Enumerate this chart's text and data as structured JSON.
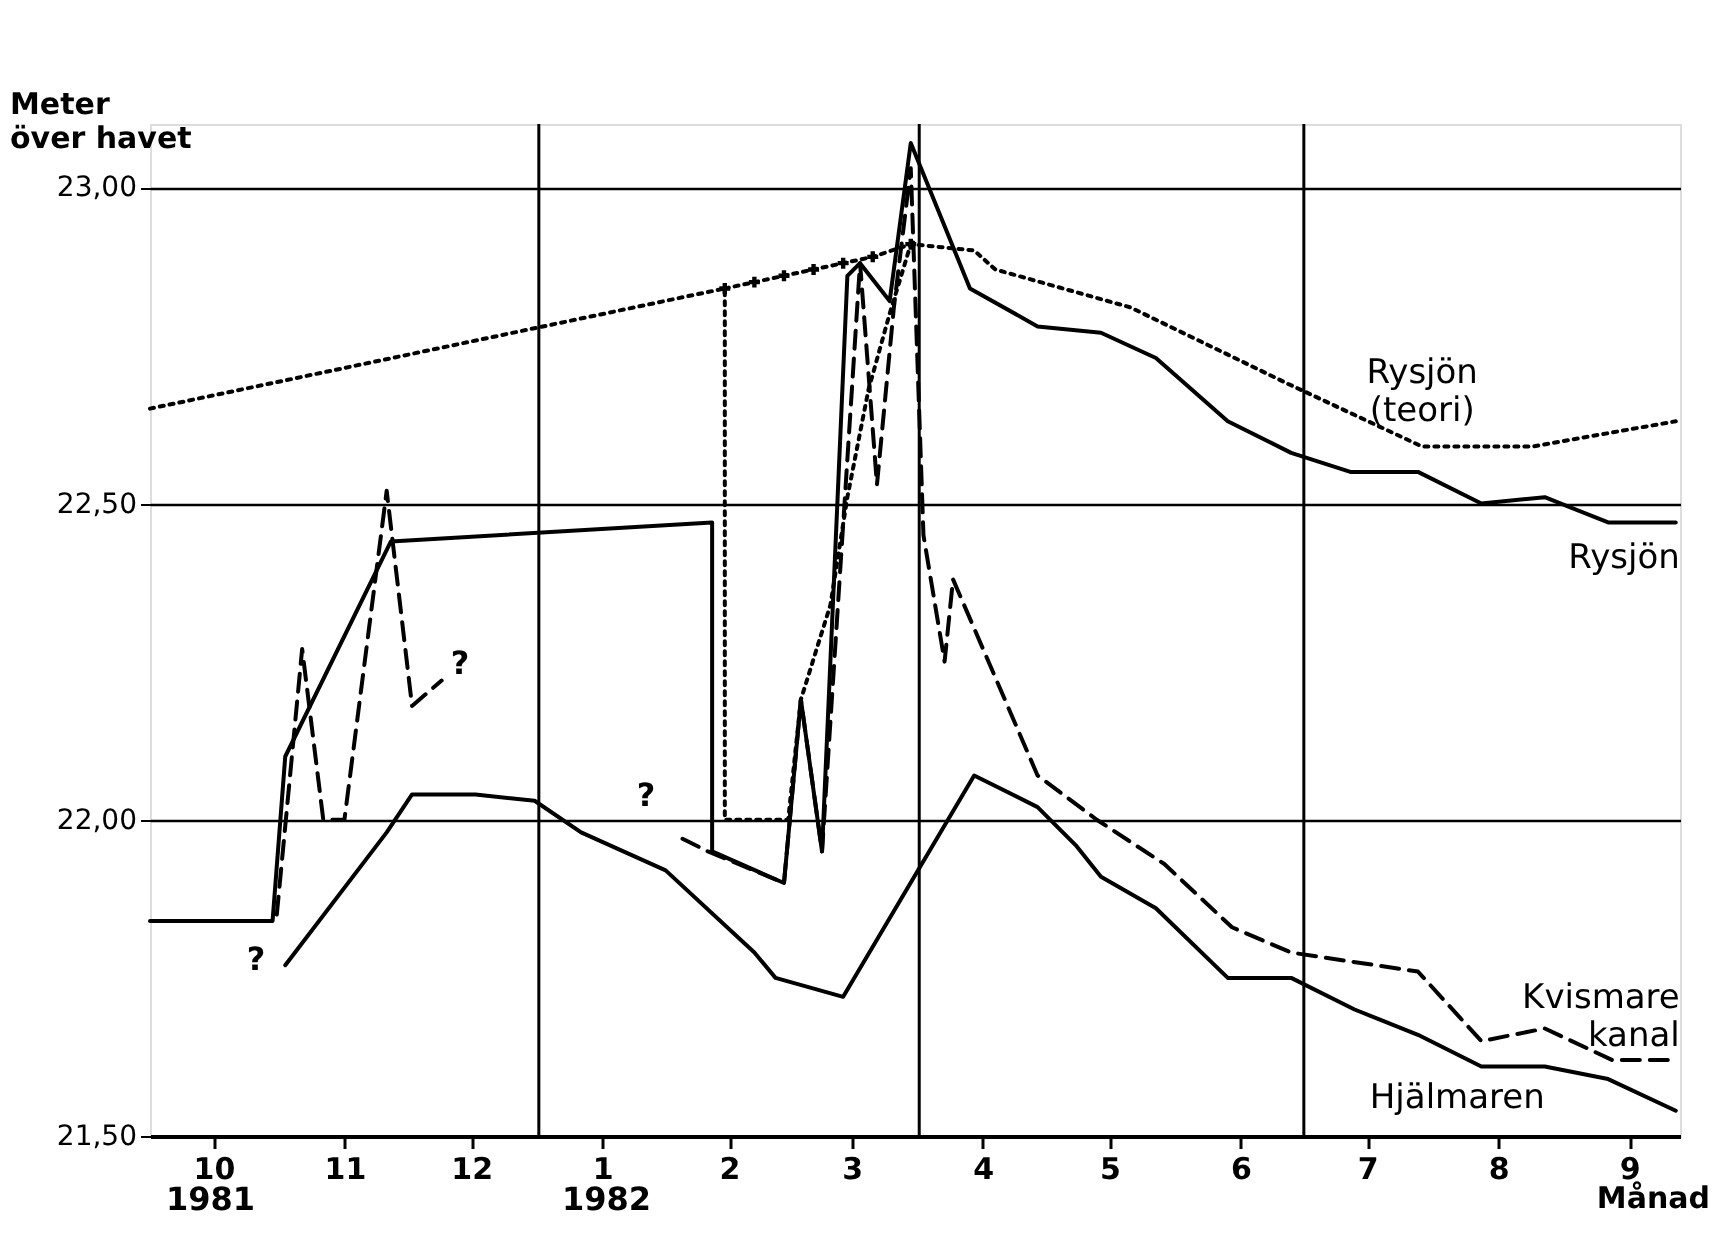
{
  "chart_data": {
    "type": "line",
    "ylabel": "Meter\növer havet",
    "xlabel": "Månad",
    "xlim": [
      "1981-10-01",
      "1982-09-28"
    ],
    "ylim": [
      21.5,
      23.1
    ],
    "xticks": [
      {
        "value": "1981-10-16",
        "label": "10"
      },
      {
        "value": "1981-11-16",
        "label": "11"
      },
      {
        "value": "1981-12-16",
        "label": "12"
      },
      {
        "value": "1982-01-16",
        "label": "1"
      },
      {
        "value": "1982-02-15",
        "label": "2"
      },
      {
        "value": "1982-03-16",
        "label": "3"
      },
      {
        "value": "1982-04-16",
        "label": "4"
      },
      {
        "value": "1982-05-16",
        "label": "5"
      },
      {
        "value": "1982-06-16",
        "label": "6"
      },
      {
        "value": "1982-07-16",
        "label": "7"
      },
      {
        "value": "1982-08-16",
        "label": "8"
      },
      {
        "value": "1982-09-16",
        "label": "9"
      }
    ],
    "yticks": [
      {
        "value": 21.5,
        "label": "21,50"
      },
      {
        "value": 22.0,
        "label": "22,00"
      },
      {
        "value": 22.5,
        "label": "22,50"
      },
      {
        "value": 23.0,
        "label": "23,00"
      }
    ],
    "grid": "y",
    "marker": "none",
    "ref_lines": [
      {
        "axis": "x",
        "value": "1982-01-01",
        "label": null
      },
      {
        "axis": "x",
        "value": "1982-04-01",
        "label": null
      },
      {
        "axis": "x",
        "value": "1982-07-01",
        "label": null
      }
    ],
    "annotations": [
      "?",
      "?",
      "?",
      "1981",
      "1982"
    ],
    "series": [
      {
        "name": "Rysjön (teori)",
        "color": "#000000",
        "line_style": "dotted",
        "x": [
          "1981-10-01",
          "1982-02-14",
          "1982-02-14",
          "1982-03-01",
          "1982-03-04",
          "1982-03-11",
          "1982-03-15",
          "1982-03-20",
          "1982-03-25",
          "1982-03-30",
          "1982-04-14",
          "1982-04-19",
          "1982-05-21",
          "1982-06-27",
          "1982-07-29",
          "1982-08-24",
          "1982-09-27"
        ],
        "values": [
          22.65,
          22.84,
          22.0,
          22.0,
          22.19,
          22.34,
          22.51,
          22.68,
          22.8,
          22.91,
          22.9,
          22.87,
          22.81,
          22.69,
          22.59,
          22.59,
          22.63
        ]
      },
      {
        "name": "Rysjön",
        "color": "#000000",
        "line_style": "solid",
        "x": [
          "1981-10-01",
          "1981-10-30",
          "1981-11-02",
          "1981-11-27",
          "1982-02-11",
          "1982-02-11",
          "1982-02-28",
          "1982-03-04",
          "1982-03-09",
          "1982-03-15",
          "1982-03-18",
          "1982-03-25",
          "1982-03-30",
          "1982-04-13",
          "1982-04-29",
          "1982-05-14",
          "1982-05-27",
          "1982-06-13",
          "1982-06-28",
          "1982-07-12",
          "1982-07-28",
          "1982-08-12",
          "1982-08-27",
          "1982-09-11",
          "1982-09-27"
        ],
        "values": [
          21.84,
          21.84,
          22.1,
          22.44,
          22.47,
          21.95,
          21.9,
          22.19,
          21.95,
          22.86,
          22.88,
          22.82,
          23.07,
          22.84,
          22.78,
          22.77,
          22.73,
          22.63,
          22.58,
          22.55,
          22.55,
          22.5,
          22.51,
          22.47,
          22.47
        ]
      },
      {
        "name": "Kvismare kanal",
        "color": "#000000",
        "line_style": "dashed",
        "x": [
          "1981-10-31",
          "1981-11-06",
          "1981-11-11",
          "1981-11-16",
          "1981-11-26",
          "1981-12-02",
          "1981-12-09",
          "1982-01-01",
          "1982-02-04",
          "1982-02-10",
          "1982-02-28",
          "1982-03-04",
          "1982-03-09",
          "1982-03-18",
          "1982-03-22",
          "1982-03-26",
          "1982-03-30",
          "1982-04-02",
          "1982-04-07",
          "1982-04-09",
          "1982-04-29",
          "1982-05-13",
          "1982-05-29",
          "1982-06-14",
          "1982-06-28",
          "1982-07-28",
          "1982-08-12",
          "1982-08-27",
          "1982-09-12",
          "1982-09-27"
        ],
        "values": [
          21.85,
          22.27,
          22.0,
          22.0,
          22.52,
          22.18,
          22.22,
          null,
          21.97,
          21.95,
          21.9,
          22.19,
          21.95,
          22.88,
          22.53,
          22.81,
          23.03,
          22.45,
          22.25,
          22.38,
          22.07,
          22.0,
          21.93,
          21.83,
          21.79,
          21.76,
          21.65,
          21.67,
          21.62,
          21.62
        ]
      },
      {
        "name": "Hjälmaren",
        "color": "#000000",
        "line_style": "solid",
        "x": [
          "1981-11-02",
          "1981-11-26",
          "1981-12-02",
          "1981-12-17",
          "1981-12-31",
          "1982-01-11",
          "1982-01-31",
          "1982-02-21",
          "1982-02-26",
          "1982-03-14",
          "1982-04-14",
          "1982-04-29",
          "1982-05-08",
          "1982-05-14",
          "1982-05-27",
          "1982-06-13",
          "1982-06-28",
          "1982-07-13",
          "1982-07-28",
          "1982-08-12",
          "1982-08-27",
          "1982-09-11",
          "1982-09-27"
        ],
        "values": [
          21.77,
          21.98,
          22.04,
          22.04,
          22.03,
          21.98,
          21.92,
          21.79,
          21.75,
          21.72,
          22.07,
          22.02,
          21.96,
          21.91,
          21.86,
          21.75,
          21.75,
          21.7,
          21.66,
          21.61,
          21.61,
          21.59,
          21.54
        ]
      },
      {
        "color": "#000000",
        "line_style": "dotted",
        "marker": "cross",
        "x": [
          "1982-02-14",
          "1982-02-21",
          "1982-02-28",
          "1982-03-07",
          "1982-03-14",
          "1982-03-21",
          "1982-03-30"
        ],
        "values": [
          22.84,
          22.85,
          22.86,
          22.87,
          22.88,
          22.89,
          22.91
        ]
      }
    ]
  }
}
